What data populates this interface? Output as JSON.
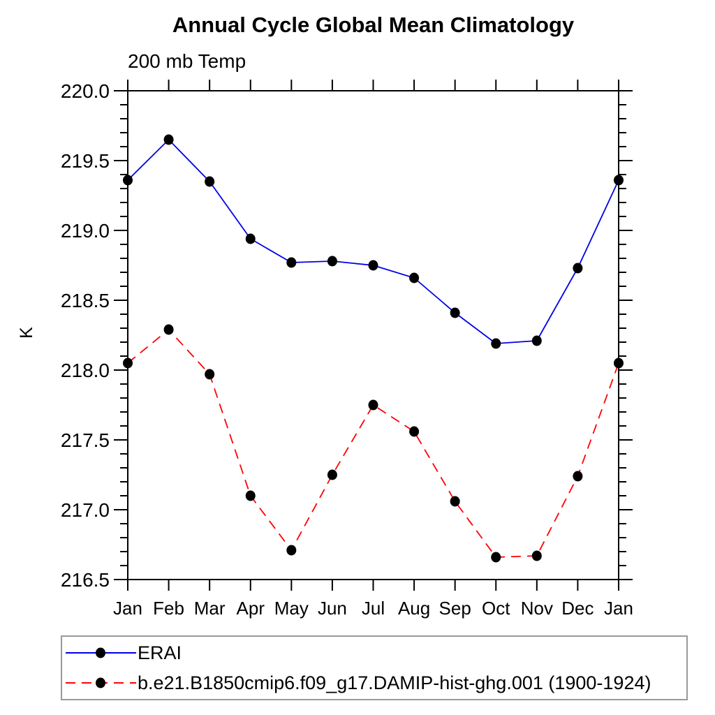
{
  "chart_data": {
    "type": "line",
    "title": "Annual Cycle Global Mean Climatology",
    "subtitle": "200 mb Temp",
    "ylabel": "K",
    "ylim": [
      216.5,
      220.0
    ],
    "ytick_step": 0.5,
    "yminor_step": 0.1,
    "grid": false,
    "legend_position": "bottom-left-box",
    "axis_color": "#000000",
    "legend_border_color": "#9a9a9a",
    "categories": [
      "Jan",
      "Feb",
      "Mar",
      "Apr",
      "May",
      "Jun",
      "Jul",
      "Aug",
      "Sep",
      "Oct",
      "Nov",
      "Dec",
      "Jan"
    ],
    "series": [
      {
        "name": "ERAI",
        "color": "#0000e6",
        "line_style": "solid",
        "marker": "filled-circle",
        "marker_color": "#000000",
        "values": [
          219.36,
          219.65,
          219.35,
          218.94,
          218.77,
          218.78,
          218.75,
          218.66,
          218.41,
          218.19,
          218.21,
          218.73,
          219.36
        ]
      },
      {
        "name": "b.e21.B1850cmip6.f09_g17.DAMIP-hist-ghg.001 (1900-1924)",
        "color": "#ff0000",
        "line_style": "dashed",
        "marker": "filled-circle",
        "marker_color": "#000000",
        "values": [
          218.05,
          218.29,
          217.97,
          217.1,
          216.71,
          217.25,
          217.75,
          217.56,
          217.06,
          216.66,
          216.67,
          217.24,
          218.05
        ]
      }
    ]
  }
}
